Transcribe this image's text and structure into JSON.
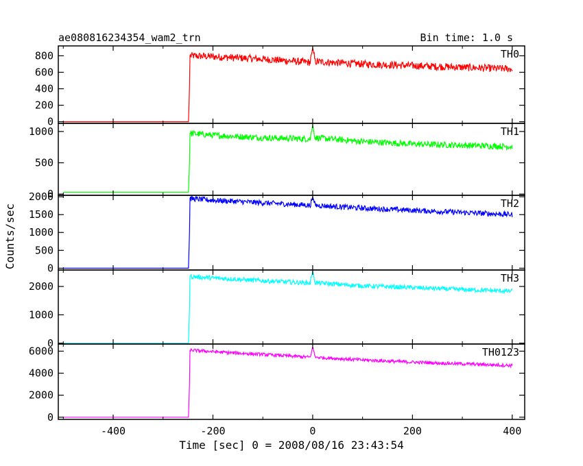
{
  "header": {
    "title": "ae080816234354_wam2_trn",
    "bin_time": "Bin time: 1.0 s"
  },
  "chart_data": {
    "type": "line",
    "title": "ae080816234354_wam2_trn",
    "subtitle": "Bin time: 1.0 s",
    "xlabel": "Time [sec] 0 = 2008/08/16 23:43:54",
    "ylabel": "Counts/sec",
    "xlim": [
      -510,
      425
    ],
    "x_ticks": [
      -400,
      -200,
      0,
      200,
      400
    ],
    "grid": false,
    "legend": "panel labels top-right",
    "panels": [
      {
        "name": "TH0",
        "color": "#ff0000",
        "ylim": [
          -20,
          920
        ],
        "y_ticks": [
          0,
          200,
          400,
          600,
          800
        ],
        "x": [
          -500,
          -249,
          -247,
          -246,
          -200,
          -100,
          -5,
          0,
          5,
          100,
          200,
          300,
          400
        ],
        "y": [
          0,
          0,
          420,
          800,
          790,
          760,
          720,
          900,
          730,
          700,
          680,
          660,
          640
        ],
        "noise": 45
      },
      {
        "name": "TH1",
        "color": "#00ff00",
        "ylim": [
          -20,
          1130
        ],
        "y_ticks": [
          0,
          500,
          1000
        ],
        "x": [
          -500,
          -249,
          -247,
          -246,
          -200,
          -100,
          -5,
          0,
          5,
          100,
          200,
          300,
          400
        ],
        "y": [
          30,
          30,
          500,
          970,
          940,
          900,
          880,
          1100,
          900,
          840,
          800,
          780,
          760
        ],
        "noise": 50
      },
      {
        "name": "TH2",
        "color": "#0000ff",
        "ylim": [
          -50,
          2040
        ],
        "y_ticks": [
          0,
          500,
          1000,
          1500,
          2000
        ],
        "x": [
          -500,
          -249,
          -247,
          -246,
          -200,
          -100,
          -5,
          0,
          5,
          100,
          200,
          300,
          400
        ],
        "y": [
          0,
          0,
          1000,
          1950,
          1900,
          1830,
          1760,
          2000,
          1760,
          1680,
          1620,
          1560,
          1500
        ],
        "noise": 75
      },
      {
        "name": "TH3",
        "color": "#00ffff",
        "ylim": [
          -30,
          2580
        ],
        "y_ticks": [
          0,
          1000,
          2000
        ],
        "x": [
          -500,
          -249,
          -247,
          -246,
          -200,
          -100,
          -5,
          0,
          5,
          100,
          200,
          300,
          400
        ],
        "y": [
          0,
          0,
          1200,
          2350,
          2300,
          2200,
          2120,
          2540,
          2130,
          2020,
          1960,
          1890,
          1830
        ],
        "noise": 80
      },
      {
        "name": "TH0123",
        "color": "#ff00ff",
        "ylim": [
          -200,
          6650
        ],
        "y_ticks": [
          0,
          2000,
          4000,
          6000
        ],
        "x": [
          -500,
          -249,
          -247,
          -246,
          -200,
          -100,
          -5,
          0,
          5,
          100,
          200,
          300,
          400
        ],
        "y": [
          0,
          0,
          3000,
          6100,
          5950,
          5700,
          5450,
          6400,
          5450,
          5200,
          5000,
          4850,
          4700
        ],
        "noise": 150
      }
    ]
  }
}
